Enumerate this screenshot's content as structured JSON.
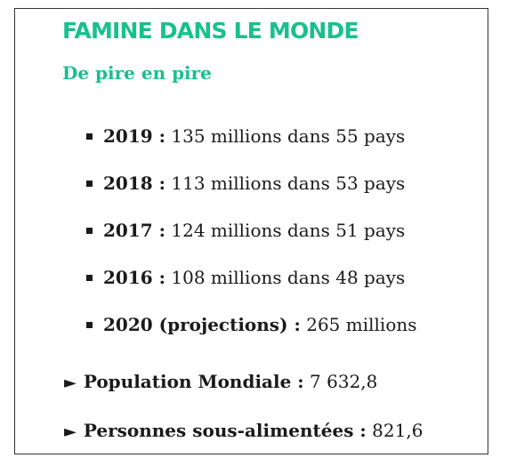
{
  "header": {
    "title": "FAMINE DANS LE MONDE",
    "subtitle": "De pire en pire"
  },
  "years": [
    {
      "label": "2019 :",
      "value": " 135 millions dans 55 pays"
    },
    {
      "label": "2018 :",
      "value": " 113 millions dans 53 pays"
    },
    {
      "label": "2017 :",
      "value": " 124 millions dans 51 pays"
    },
    {
      "label": "2016 :",
      "value": " 108 millions dans 48 pays"
    },
    {
      "label": "2020 (projections) :",
      "value": " 265 millions"
    }
  ],
  "stats": [
    {
      "arrow": "►",
      "label": "Population Mondiale :",
      "value": " 7 632,8"
    },
    {
      "arrow": "►",
      "label": "Personnes sous-alimentées :",
      "value": " 821,6"
    }
  ],
  "colors": {
    "accent": "#19c08c",
    "text": "#1a1a1a",
    "border": "#333333"
  },
  "icons": {
    "bullet": "square-bullet-icon",
    "arrow": "right-triangle-arrow-icon"
  }
}
